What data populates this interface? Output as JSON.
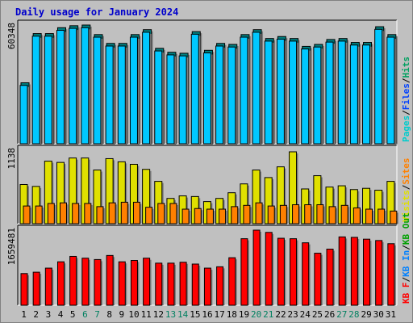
{
  "title": "Daily usage for January 2024",
  "colors": {
    "background": "#c0c0c0",
    "panel": "#c0c0c0",
    "title": "#0000cc",
    "hits": "#00a060",
    "files": "#0040ff",
    "pages": "#00cccc",
    "visits": "#e0e000",
    "sites": "#ff8000",
    "kbf": "#ff0000",
    "kbin": "#0080ff",
    "kbout": "#00a000",
    "weekend_label": "#008060",
    "weekday_label": "#000000"
  },
  "legend": {
    "top": [
      {
        "text": "Pages",
        "color": "#00cccc"
      },
      {
        "text": "/",
        "color": "#000000"
      },
      {
        "text": "Files",
        "color": "#0040ff"
      },
      {
        "text": "/",
        "color": "#000000"
      },
      {
        "text": "Hits",
        "color": "#00a060"
      }
    ],
    "middle": [
      {
        "text": "Visits",
        "color": "#e0e000"
      },
      {
        "text": "/",
        "color": "#000000"
      },
      {
        "text": "Sites",
        "color": "#ff8000"
      }
    ],
    "bottom": [
      {
        "text": "KB F",
        "color": "#ff0000"
      },
      {
        "text": "/",
        "color": "#000000"
      },
      {
        "text": "KB In",
        "color": "#0080ff"
      },
      {
        "text": "/",
        "color": "#000000"
      },
      {
        "text": "KB Out",
        "color": "#00a000"
      }
    ]
  },
  "chart_data": [
    {
      "type": "bar",
      "panel": "top",
      "ymax_label": "60348",
      "ylim": [
        0,
        60348
      ],
      "categories": [
        "1",
        "2",
        "3",
        "4",
        "5",
        "6",
        "7",
        "8",
        "9",
        "10",
        "11",
        "12",
        "13",
        "14",
        "15",
        "16",
        "17",
        "18",
        "19",
        "20",
        "21",
        "22",
        "23",
        "24",
        "25",
        "26",
        "27",
        "28",
        "29",
        "30",
        "31"
      ],
      "weekend": [
        6,
        7,
        13,
        14,
        20,
        21,
        27,
        28
      ],
      "series": [
        {
          "name": "Hits",
          "values": [
            31000,
            56000,
            56000,
            59000,
            60000,
            60348,
            55500,
            51000,
            51000,
            55500,
            58000,
            48500,
            46500,
            46000,
            57000,
            47500,
            51000,
            50500,
            55500,
            58000,
            53500,
            54500,
            53500,
            49500,
            50500,
            53000,
            53500,
            51500,
            51500,
            59500,
            55500
          ]
        },
        {
          "name": "Files",
          "values": [
            30500,
            55500,
            55500,
            58500,
            59500,
            59800,
            55000,
            50500,
            50500,
            55000,
            57500,
            48000,
            46000,
            45500,
            56500,
            47000,
            50500,
            50000,
            55000,
            57500,
            53000,
            54000,
            53000,
            49000,
            50000,
            52500,
            53000,
            51000,
            51000,
            59000,
            55000
          ]
        }
      ]
    },
    {
      "type": "bar",
      "panel": "middle",
      "ymax_label": "1138",
      "ylim": [
        0,
        1138
      ],
      "categories": [
        "1",
        "2",
        "3",
        "4",
        "5",
        "6",
        "7",
        "8",
        "9",
        "10",
        "11",
        "12",
        "13",
        "14",
        "15",
        "16",
        "17",
        "18",
        "19",
        "20",
        "21",
        "22",
        "23",
        "24",
        "25",
        "26",
        "27",
        "28",
        "29",
        "30",
        "31"
      ],
      "series": [
        {
          "name": "Visits",
          "values": [
            620,
            590,
            990,
            970,
            1040,
            1040,
            850,
            1030,
            980,
            940,
            860,
            670,
            400,
            440,
            430,
            350,
            400,
            490,
            630,
            850,
            730,
            900,
            1138,
            550,
            760,
            580,
            600,
            540,
            560,
            530,
            670
          ]
        },
        {
          "name": "Sites",
          "values": [
            280,
            280,
            320,
            330,
            320,
            320,
            270,
            330,
            340,
            340,
            260,
            320,
            320,
            230,
            240,
            230,
            230,
            270,
            290,
            330,
            280,
            290,
            300,
            300,
            300,
            270,
            290,
            250,
            230,
            230,
            200
          ]
        }
      ]
    },
    {
      "type": "bar",
      "panel": "bottom",
      "ymax_label": "1659481",
      "ylim": [
        0,
        1659481
      ],
      "categories": [
        "1",
        "2",
        "3",
        "4",
        "5",
        "6",
        "7",
        "8",
        "9",
        "10",
        "11",
        "12",
        "13",
        "14",
        "15",
        "16",
        "17",
        "18",
        "19",
        "20",
        "21",
        "22",
        "23",
        "24",
        "25",
        "26",
        "27",
        "28",
        "29",
        "30",
        "31"
      ],
      "series": [
        {
          "name": "KB F",
          "values": [
            700000,
            730000,
            820000,
            960000,
            1080000,
            1040000,
            1010000,
            1100000,
            960000,
            990000,
            1040000,
            930000,
            930000,
            950000,
            910000,
            820000,
            850000,
            1050000,
            1470000,
            1659481,
            1610000,
            1480000,
            1470000,
            1380000,
            1150000,
            1240000,
            1510000,
            1500000,
            1460000,
            1430000,
            1360000
          ]
        }
      ]
    }
  ]
}
